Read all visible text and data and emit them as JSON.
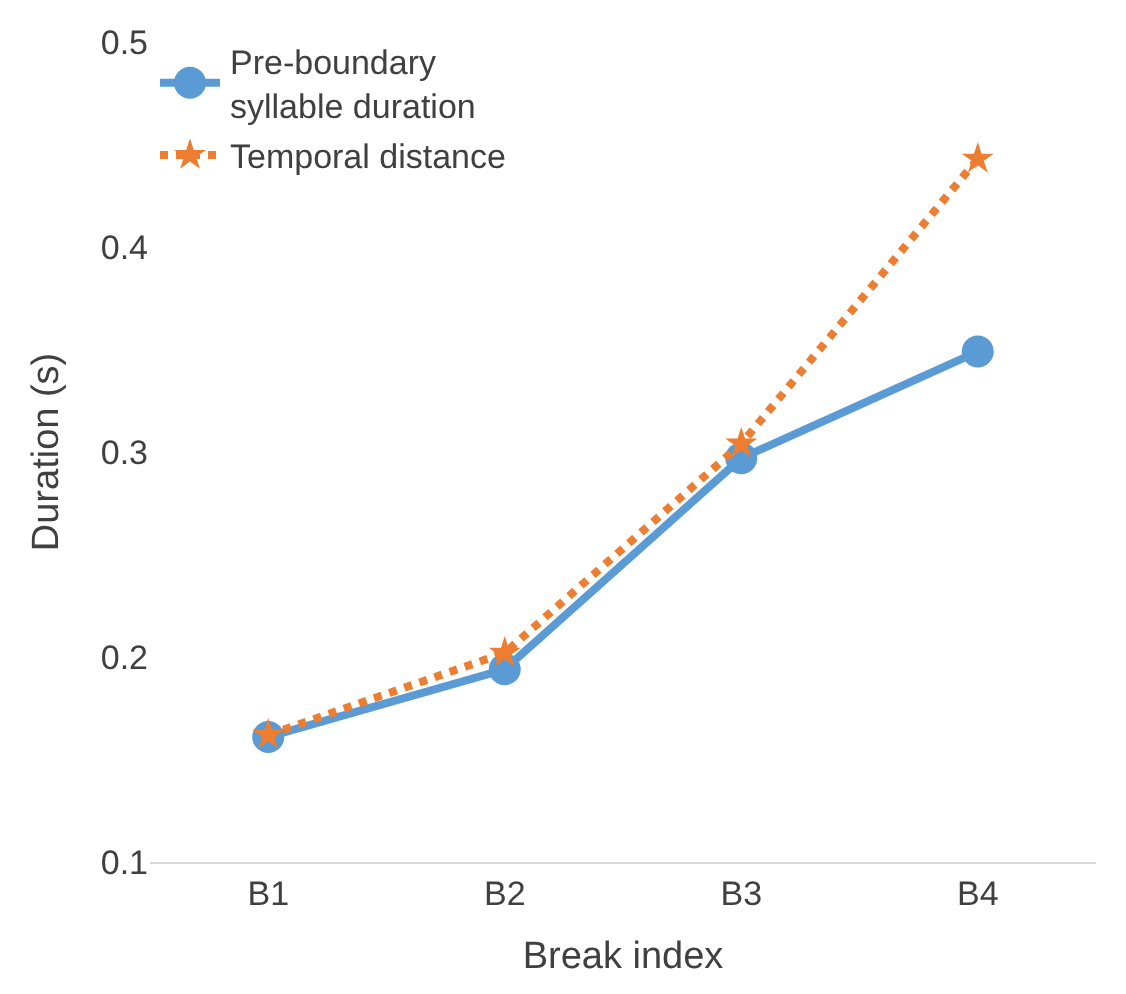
{
  "chart_data": {
    "type": "line",
    "xlabel": "Break index",
    "ylabel": "Duration (s)",
    "categories": [
      "B1",
      "B2",
      "B3",
      "B4"
    ],
    "series": [
      {
        "name": "Pre-boundary syllable duration",
        "color": "#5b9bd5",
        "values": [
          0.161,
          0.194,
          0.297,
          0.349
        ],
        "marker": "circle",
        "line_style": "solid"
      },
      {
        "name": "Temporal distance",
        "color": "#ed7d31",
        "values": [
          0.162,
          0.202,
          0.304,
          0.443
        ],
        "marker": "star",
        "line_style": "dotted"
      }
    ],
    "ylim": [
      0.1,
      0.5
    ],
    "yticks": [
      0.1,
      0.2,
      0.3,
      0.4,
      0.5
    ],
    "grid": false,
    "legend": "top left"
  }
}
